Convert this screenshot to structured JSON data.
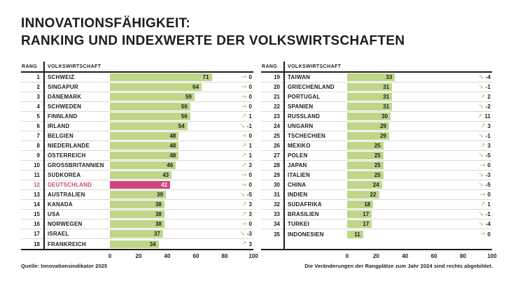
{
  "title": {
    "line1": "INNOVATIONSFÄHIGKEIT:",
    "line2": "RANKING UND INDEXWERTE DER VOLKSWIRTSCHAFTEN"
  },
  "columns": {
    "rank": "RANG",
    "economy": "VOLKSWIRTSCHAFT"
  },
  "source": "Quelle: Innovationsindikator 2025",
  "note": "Die Veränderungen der Rangplätze zum Jahr 2024 sind rechts abgebildet.",
  "arrows": {
    "up": "↗",
    "flat": "→",
    "down": "↘"
  },
  "colors": {
    "text": "#1d1d1b",
    "bar": "#bdd688",
    "highlight": "#d04581",
    "highlight_value_text": "#f6f2e8",
    "arrow": "#b4cd7f",
    "separator": "#d8d8d3"
  },
  "chart_data": {
    "type": "bar",
    "title": "Innovationsfähigkeit: Ranking und Indexwerte der Volkswirtschaften",
    "xlim": [
      0,
      100
    ],
    "x_ticks": [
      0,
      20,
      40,
      60,
      80,
      100
    ],
    "highlight_country": "DEUTSCHLAND",
    "columns": [
      "rank",
      "country",
      "index_value",
      "rank_change_vs_2024"
    ],
    "left_rows": [
      {
        "rank": 1,
        "country": "SCHWEIZ",
        "value": 71,
        "change": 0
      },
      {
        "rank": 2,
        "country": "SINGAPUR",
        "value": 64,
        "change": 0
      },
      {
        "rank": 3,
        "country": "DÄNEMARK",
        "value": 59,
        "change": 0
      },
      {
        "rank": 4,
        "country": "SCHWEDEN",
        "value": 56,
        "change": 0
      },
      {
        "rank": 5,
        "country": "FINNLAND",
        "value": 56,
        "change": 1
      },
      {
        "rank": 6,
        "country": "IRLAND",
        "value": 54,
        "change": -1
      },
      {
        "rank": 7,
        "country": "BELGIEN",
        "value": 48,
        "change": 0
      },
      {
        "rank": 8,
        "country": "NIEDERLANDE",
        "value": 48,
        "change": 1
      },
      {
        "rank": 9,
        "country": "ÖSTERREICH",
        "value": 48,
        "change": 1
      },
      {
        "rank": 10,
        "country": "GROSSBRITANNIEN",
        "value": 46,
        "change": 3
      },
      {
        "rank": 11,
        "country": "SÜDKOREA",
        "value": 43,
        "change": 0
      },
      {
        "rank": 12,
        "country": "DEUTSCHLAND",
        "value": 42,
        "change": 0
      },
      {
        "rank": 13,
        "country": "AUSTRALIEN",
        "value": 39,
        "change": -5
      },
      {
        "rank": 14,
        "country": "KANADA",
        "value": 38,
        "change": 3
      },
      {
        "rank": 15,
        "country": "USA",
        "value": 38,
        "change": 3
      },
      {
        "rank": 16,
        "country": "NORWEGEN",
        "value": 38,
        "change": 0
      },
      {
        "rank": 17,
        "country": "ISRAEL",
        "value": 37,
        "change": -3
      },
      {
        "rank": 18,
        "country": "FRANKREICH",
        "value": 34,
        "change": 3
      }
    ],
    "right_rows": [
      {
        "rank": 19,
        "country": "TAIWAN",
        "value": 33,
        "change": -4
      },
      {
        "rank": 20,
        "country": "GRIECHENLAND",
        "value": 31,
        "change": -1
      },
      {
        "rank": 21,
        "country": "PORTUGAL",
        "value": 31,
        "change": 2
      },
      {
        "rank": 22,
        "country": "SPANIEN",
        "value": 31,
        "change": -2
      },
      {
        "rank": 23,
        "country": "RUSSLAND",
        "value": 30,
        "change": 11
      },
      {
        "rank": 24,
        "country": "UNGARN",
        "value": 29,
        "change": 3
      },
      {
        "rank": 25,
        "country": "TSCHECHIEN",
        "value": 29,
        "change": -1
      },
      {
        "rank": 26,
        "country": "MEXIKO",
        "value": 25,
        "change": 3
      },
      {
        "rank": 27,
        "country": "POLEN",
        "value": 25,
        "change": -5
      },
      {
        "rank": 28,
        "country": "JAPAN",
        "value": 25,
        "change": 0
      },
      {
        "rank": 29,
        "country": "ITALIEN",
        "value": 25,
        "change": -3
      },
      {
        "rank": 30,
        "country": "CHINA",
        "value": 24,
        "change": -5
      },
      {
        "rank": 31,
        "country": "INDIEN",
        "value": 22,
        "change": 0
      },
      {
        "rank": 32,
        "country": "SÜDAFRIKA",
        "value": 18,
        "change": 1
      },
      {
        "rank": 33,
        "country": "BRASILIEN",
        "value": 17,
        "change": -1
      },
      {
        "rank": 34,
        "country": "TÜRKEI",
        "value": 17,
        "change": -4
      },
      {
        "rank": 35,
        "country": "INDONESIEN",
        "value": 11,
        "change": 0
      }
    ]
  }
}
